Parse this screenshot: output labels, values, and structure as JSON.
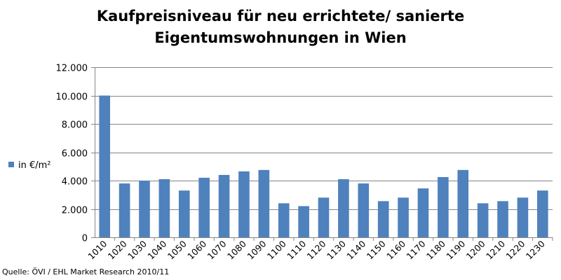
{
  "chart_data": {
    "type": "bar",
    "title_lines": [
      "Kaufpreisniveau für neu errichtete/ sanierte",
      "Eigentumswohnungen in Wien"
    ],
    "categories": [
      "1010",
      "1020",
      "1030",
      "1040",
      "1050",
      "1060",
      "1070",
      "1080",
      "1090",
      "1100",
      "1110",
      "1120",
      "1130",
      "1140",
      "1150",
      "1160",
      "1170",
      "1180",
      "1190",
      "1200",
      "1210",
      "1220",
      "1230"
    ],
    "series": [
      {
        "name": "in €/m²",
        "color": "#4F81BD",
        "values": [
          10000,
          3800,
          4000,
          4100,
          3300,
          4200,
          4400,
          4650,
          4750,
          2400,
          2200,
          2800,
          4100,
          3800,
          2550,
          2800,
          3450,
          4250,
          4750,
          2400,
          2550,
          2800,
          3300
        ]
      }
    ],
    "ylim": [
      0,
      12000
    ],
    "yticks": [
      0,
      2000,
      4000,
      6000,
      8000,
      10000,
      12000
    ],
    "ytick_labels": [
      "0",
      "2.000",
      "4.000",
      "6.000",
      "8.000",
      "10.000",
      "12.000"
    ],
    "grid": true,
    "legend_position": "left",
    "xlabel": "",
    "ylabel": ""
  },
  "footer": {
    "source": "Quelle: ÖVI / EHL Market Research 2010/11"
  }
}
